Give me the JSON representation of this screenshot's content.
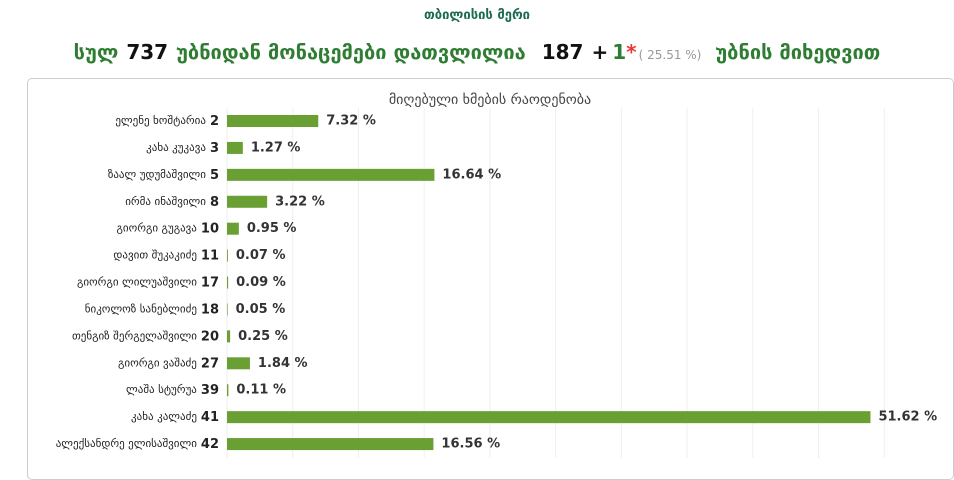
{
  "header": {
    "title": "თბილისის მერი",
    "total_label": "სულ",
    "total": 737,
    "counted_label": "უბნიდან მონაცემები დათვლილია",
    "counted": 187,
    "plus": "+",
    "extra": 1,
    "star": "*",
    "percent_label": "( 25.51 %)",
    "suffix": "უბნის მიხედვით"
  },
  "chart_data": {
    "type": "hbar",
    "title": "მიღებული ხმების რაოდენობა",
    "categories": [
      "ელენე ხოშტარია",
      "კახა კუკავა",
      "ზაალ უდუმაშვილი",
      "ირმა ინაშვილი",
      "გიორგი გუგავა",
      "დავით შუკაკიძე",
      "გიორგი ლილუაშვილი",
      "ნიკოლოზ სანებლიძე",
      "თენგიზ შერგელაშვილი",
      "გიორგი ვაშაძე",
      "ლაშა სტურუა",
      "კახა კალაძე",
      "ალექსანდრე ელისაშვილი"
    ],
    "category_numbers": [
      2,
      3,
      5,
      8,
      10,
      11,
      17,
      18,
      20,
      27,
      39,
      41,
      42
    ],
    "values": [
      7.32,
      1.27,
      16.64,
      3.22,
      0.95,
      0.07,
      0.09,
      0.05,
      0.25,
      1.84,
      0.11,
      51.62,
      16.56
    ],
    "value_labels": [
      "7.32 %",
      "1.27 %",
      "16.64 %",
      "3.22 %",
      "0.95 %",
      "0.07 %",
      "0.09 %",
      "0.05 %",
      "0.25 %",
      "1.84 %",
      "0.11 %",
      "51.62 %",
      "16.56 %"
    ],
    "color": "#6a9f33",
    "xlim": [
      0,
      58
    ]
  }
}
